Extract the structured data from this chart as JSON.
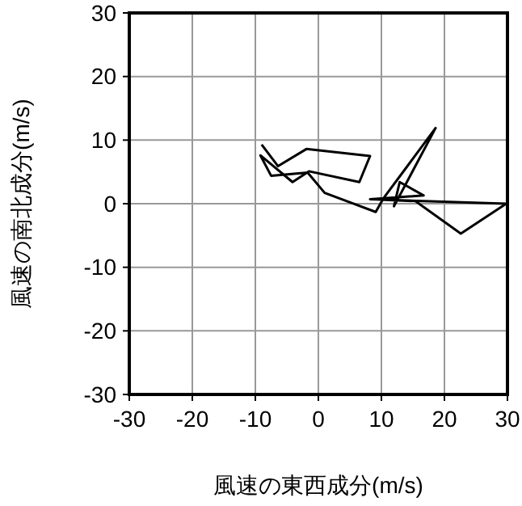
{
  "chart_data": {
    "type": "line",
    "xlabel": "風速の東西成分(m/s)",
    "ylabel": "風速の南北成分(m/s)",
    "xlim": [
      -30,
      30
    ],
    "ylim": [
      -30,
      30
    ],
    "xticks": [
      -30,
      -20,
      -10,
      0,
      10,
      20,
      30
    ],
    "yticks": [
      -30,
      -20,
      -10,
      0,
      10,
      20,
      30
    ],
    "grid": true,
    "line_style": "solid",
    "series": [
      {
        "color": "#000000",
        "x": [
          -9.0,
          -6.4,
          -1.9,
          8.2,
          6.5,
          -1.5,
          -4.1,
          -9.2,
          -7.5,
          -1.7,
          1.0,
          9.1,
          10.3,
          18.6,
          12.0,
          12.9,
          16.7,
          8.2,
          29.8,
          22.6,
          15.4,
          10.5
        ],
        "values": [
          9.3,
          5.9,
          8.6,
          7.5,
          3.4,
          5.1,
          3.4,
          7.6,
          4.4,
          4.9,
          1.7,
          -1.3,
          0.8,
          11.9,
          -0.4,
          3.4,
          1.3,
          0.7,
          0,
          -4.7,
          0.4,
          0.6
        ]
      }
    ]
  }
}
